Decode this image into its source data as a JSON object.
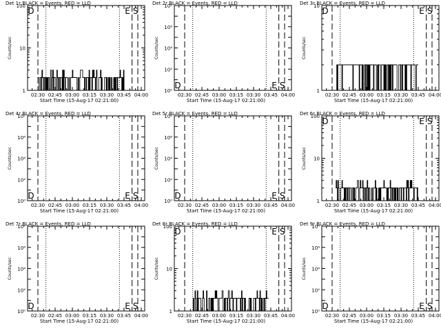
{
  "figure": {
    "background": "#ffffff",
    "foreground": "#000000",
    "xlabel": "Start Time (15-Aug-17 02:21:00)",
    "ylabel": "Counts/sec",
    "x_ticks": [
      "02:30",
      "02:45",
      "03:00",
      "03:15",
      "03:30",
      "03:45",
      "04:00"
    ]
  },
  "chart_data": [
    {
      "id": "det1r",
      "type": "line",
      "title": "Det 1r BLACK = Events, RED = LLD",
      "xlabel": "Start Time (15-Aug-17 02:21:00)",
      "ylabel": "Counts/sec",
      "xlim": [
        "02:21",
        "04:03"
      ],
      "yscale": "log",
      "ylim": [
        1,
        100
      ],
      "y_ticks": [
        {
          "v": 1,
          "label": "1"
        },
        {
          "v": 10,
          "label": "10"
        },
        {
          "v": 100,
          "label": "100"
        }
      ],
      "vlines_dashed": [
        "02:30",
        "03:52",
        "03:57"
      ],
      "vlines_dotted": [
        "02:37",
        "03:41"
      ],
      "markers": [
        {
          "text": "D",
          "x": "02:24",
          "pos": "top"
        },
        {
          "text": "E",
          "x": "03:48",
          "pos": "top"
        },
        {
          "text": "S",
          "x": "03:55",
          "pos": "top"
        }
      ],
      "series": [
        {
          "color": "#000000",
          "x_range": [
            "02:30",
            "03:45"
          ],
          "typical": 2,
          "noise": [
            1,
            3
          ]
        }
      ]
    },
    {
      "id": "det2r",
      "type": "line",
      "title": "Det 2r BLACK = Events, RED = LLD",
      "xlabel": "Start Time (15-Aug-17 02:21:00)",
      "ylabel": "Counts/sec",
      "xlim": [
        "02:21",
        "04:03"
      ],
      "yscale": "log",
      "ylim": [
        1,
        100000000
      ],
      "y_ticks": [
        {
          "v": 1,
          "label": "10⁰"
        },
        {
          "v": 100,
          "label": "10²"
        },
        {
          "v": 10000,
          "label": "10⁴"
        },
        {
          "v": 1000000,
          "label": "10⁶"
        },
        {
          "v": 100000000,
          "label": "10⁸"
        }
      ],
      "vlines_dashed": [
        "02:30",
        "03:52",
        "03:57"
      ],
      "vlines_dotted": [
        "02:37",
        "03:41"
      ],
      "markers": [
        {
          "text": "D",
          "x": "02:24",
          "pos": "bottom"
        },
        {
          "text": "E",
          "x": "03:48",
          "pos": "bottom"
        },
        {
          "text": "S",
          "x": "03:55",
          "pos": "bottom"
        }
      ],
      "series": []
    },
    {
      "id": "det3r",
      "type": "line",
      "title": "Det 3r BLACK = Events, RED = LLD",
      "xlabel": "Start Time (15-Aug-17 02:21:00)",
      "ylabel": "Counts/sec",
      "xlim": [
        "02:21",
        "04:03"
      ],
      "yscale": "log",
      "ylim": [
        1,
        10
      ],
      "y_ticks": [
        {
          "v": 1,
          "label": "1"
        },
        {
          "v": 10,
          "label": "10"
        }
      ],
      "vlines_dashed": [
        "02:30",
        "03:52",
        "03:57"
      ],
      "vlines_dotted": [
        "02:37",
        "03:41"
      ],
      "markers": [
        {
          "text": "D",
          "x": "02:24",
          "pos": "top"
        },
        {
          "text": "E",
          "x": "03:48",
          "pos": "top"
        },
        {
          "text": "S",
          "x": "03:55",
          "pos": "top"
        }
      ],
      "series": [
        {
          "color": "#000000",
          "x_range": [
            "02:33",
            "03:45"
          ],
          "typical": 2,
          "noise": [
            1,
            2
          ]
        }
      ]
    },
    {
      "id": "det4r",
      "type": "line",
      "title": "Det 4r BLACK = Events, RED = LLD",
      "xlabel": "Start Time (15-Aug-17 02:21:00)",
      "ylabel": "Counts/sec",
      "xlim": [
        "02:21",
        "04:03"
      ],
      "yscale": "log",
      "ylim": [
        1,
        100000000
      ],
      "y_ticks": [
        {
          "v": 1,
          "label": "10⁰"
        },
        {
          "v": 100,
          "label": "10²"
        },
        {
          "v": 10000,
          "label": "10⁴"
        },
        {
          "v": 1000000,
          "label": "10⁶"
        },
        {
          "v": 100000000,
          "label": "10⁸"
        }
      ],
      "vlines_dashed": [
        "02:30",
        "03:52",
        "03:57"
      ],
      "vlines_dotted": [
        "02:37",
        "03:41"
      ],
      "markers": [
        {
          "text": "D",
          "x": "02:24",
          "pos": "bottom"
        },
        {
          "text": "E",
          "x": "03:48",
          "pos": "bottom"
        },
        {
          "text": "S",
          "x": "03:55",
          "pos": "bottom"
        }
      ],
      "series": []
    },
    {
      "id": "det5r",
      "type": "line",
      "title": "Det 5r BLACK = Events, RED = LLD",
      "xlabel": "Start Time (15-Aug-17 02:21:00)",
      "ylabel": "Counts/sec",
      "xlim": [
        "02:21",
        "04:03"
      ],
      "yscale": "log",
      "ylim": [
        1,
        100000000
      ],
      "y_ticks": [
        {
          "v": 1,
          "label": "10⁰"
        },
        {
          "v": 100,
          "label": "10²"
        },
        {
          "v": 10000,
          "label": "10⁴"
        },
        {
          "v": 1000000,
          "label": "10⁶"
        },
        {
          "v": 100000000,
          "label": "10⁸"
        }
      ],
      "vlines_dashed": [
        "02:30",
        "03:52",
        "03:57"
      ],
      "vlines_dotted": [
        "02:37",
        "03:41"
      ],
      "markers": [
        {
          "text": "D",
          "x": "02:24",
          "pos": "bottom"
        },
        {
          "text": "E",
          "x": "03:48",
          "pos": "bottom"
        },
        {
          "text": "S",
          "x": "03:55",
          "pos": "bottom"
        }
      ],
      "series": []
    },
    {
      "id": "det6r",
      "type": "line",
      "title": "Det 6r BLACK = Events, RED = LLD",
      "xlabel": "Start Time (15-Aug-17 02:21:00)",
      "ylabel": "Counts/sec",
      "xlim": [
        "02:21",
        "04:03"
      ],
      "yscale": "log",
      "ylim": [
        1,
        100
      ],
      "y_ticks": [
        {
          "v": 1,
          "label": "1"
        },
        {
          "v": 10,
          "label": "10"
        },
        {
          "v": 100,
          "label": "100"
        }
      ],
      "vlines_dashed": [
        "02:30",
        "03:52",
        "03:57"
      ],
      "vlines_dotted": [
        "02:37",
        "03:41"
      ],
      "markers": [
        {
          "text": "D",
          "x": "02:24",
          "pos": "top"
        },
        {
          "text": "E",
          "x": "03:48",
          "pos": "top"
        },
        {
          "text": "S",
          "x": "03:55",
          "pos": "top"
        }
      ],
      "series": [
        {
          "color": "#000000",
          "x_range": [
            "02:33",
            "03:45"
          ],
          "typical": 2,
          "noise": [
            1,
            3
          ]
        }
      ]
    },
    {
      "id": "det7r",
      "type": "line",
      "title": "Det 7r BLACK = Events, RED = LLD",
      "xlabel": "Start Time (15-Aug-17 02:21:00)",
      "ylabel": "Counts/sec",
      "xlim": [
        "02:21",
        "04:03"
      ],
      "yscale": "log",
      "ylim": [
        1,
        100000000
      ],
      "y_ticks": [
        {
          "v": 1,
          "label": "10⁰"
        },
        {
          "v": 100,
          "label": "10²"
        },
        {
          "v": 10000,
          "label": "10⁴"
        },
        {
          "v": 1000000,
          "label": "10⁶"
        },
        {
          "v": 100000000,
          "label": "10⁸"
        }
      ],
      "vlines_dashed": [
        "02:30",
        "03:52",
        "03:57"
      ],
      "vlines_dotted": [
        "02:37",
        "03:41"
      ],
      "markers": [
        {
          "text": "D",
          "x": "02:24",
          "pos": "bottom"
        },
        {
          "text": "E",
          "x": "03:48",
          "pos": "bottom"
        },
        {
          "text": "S",
          "x": "03:55",
          "pos": "bottom"
        }
      ],
      "series": []
    },
    {
      "id": "det8r",
      "type": "line",
      "title": "Det 8r BLACK = Events, RED = LLD",
      "xlabel": "Start Time (15-Aug-17 02:21:00)",
      "ylabel": "Counts/sec",
      "xlim": [
        "02:21",
        "04:03"
      ],
      "yscale": "log",
      "ylim": [
        1,
        100
      ],
      "y_ticks": [
        {
          "v": 1,
          "label": "1"
        },
        {
          "v": 10,
          "label": "10"
        },
        {
          "v": 100,
          "label": "100"
        }
      ],
      "vlines_dashed": [
        "02:30",
        "03:52",
        "03:57"
      ],
      "vlines_dotted": [
        "02:37",
        "03:41"
      ],
      "markers": [
        {
          "text": "D",
          "x": "02:24",
          "pos": "top"
        },
        {
          "text": "E",
          "x": "03:48",
          "pos": "top"
        },
        {
          "text": "S",
          "x": "03:55",
          "pos": "top"
        }
      ],
      "series": [
        {
          "color": "#000000",
          "x_range": [
            "02:37",
            "03:43"
          ],
          "typical": 2,
          "noise": [
            1,
            3
          ]
        }
      ]
    },
    {
      "id": "det9r",
      "type": "line",
      "title": "Det 9r BLACK = Events, RED = LLD",
      "xlabel": "Start Time (15-Aug-17 02:21:00)",
      "ylabel": "Counts/sec",
      "xlim": [
        "02:21",
        "04:03"
      ],
      "yscale": "log",
      "ylim": [
        1,
        100000000
      ],
      "y_ticks": [
        {
          "v": 1,
          "label": "10⁰"
        },
        {
          "v": 100,
          "label": "10²"
        },
        {
          "v": 10000,
          "label": "10⁴"
        },
        {
          "v": 1000000,
          "label": "10⁶"
        },
        {
          "v": 100000000,
          "label": "10⁸"
        }
      ],
      "vlines_dashed": [
        "02:30",
        "03:52",
        "03:57"
      ],
      "vlines_dotted": [
        "02:37",
        "03:41"
      ],
      "markers": [
        {
          "text": "D",
          "x": "02:24",
          "pos": "bottom"
        },
        {
          "text": "E",
          "x": "03:48",
          "pos": "bottom"
        },
        {
          "text": "S",
          "x": "03:55",
          "pos": "bottom"
        }
      ],
      "series": []
    }
  ]
}
